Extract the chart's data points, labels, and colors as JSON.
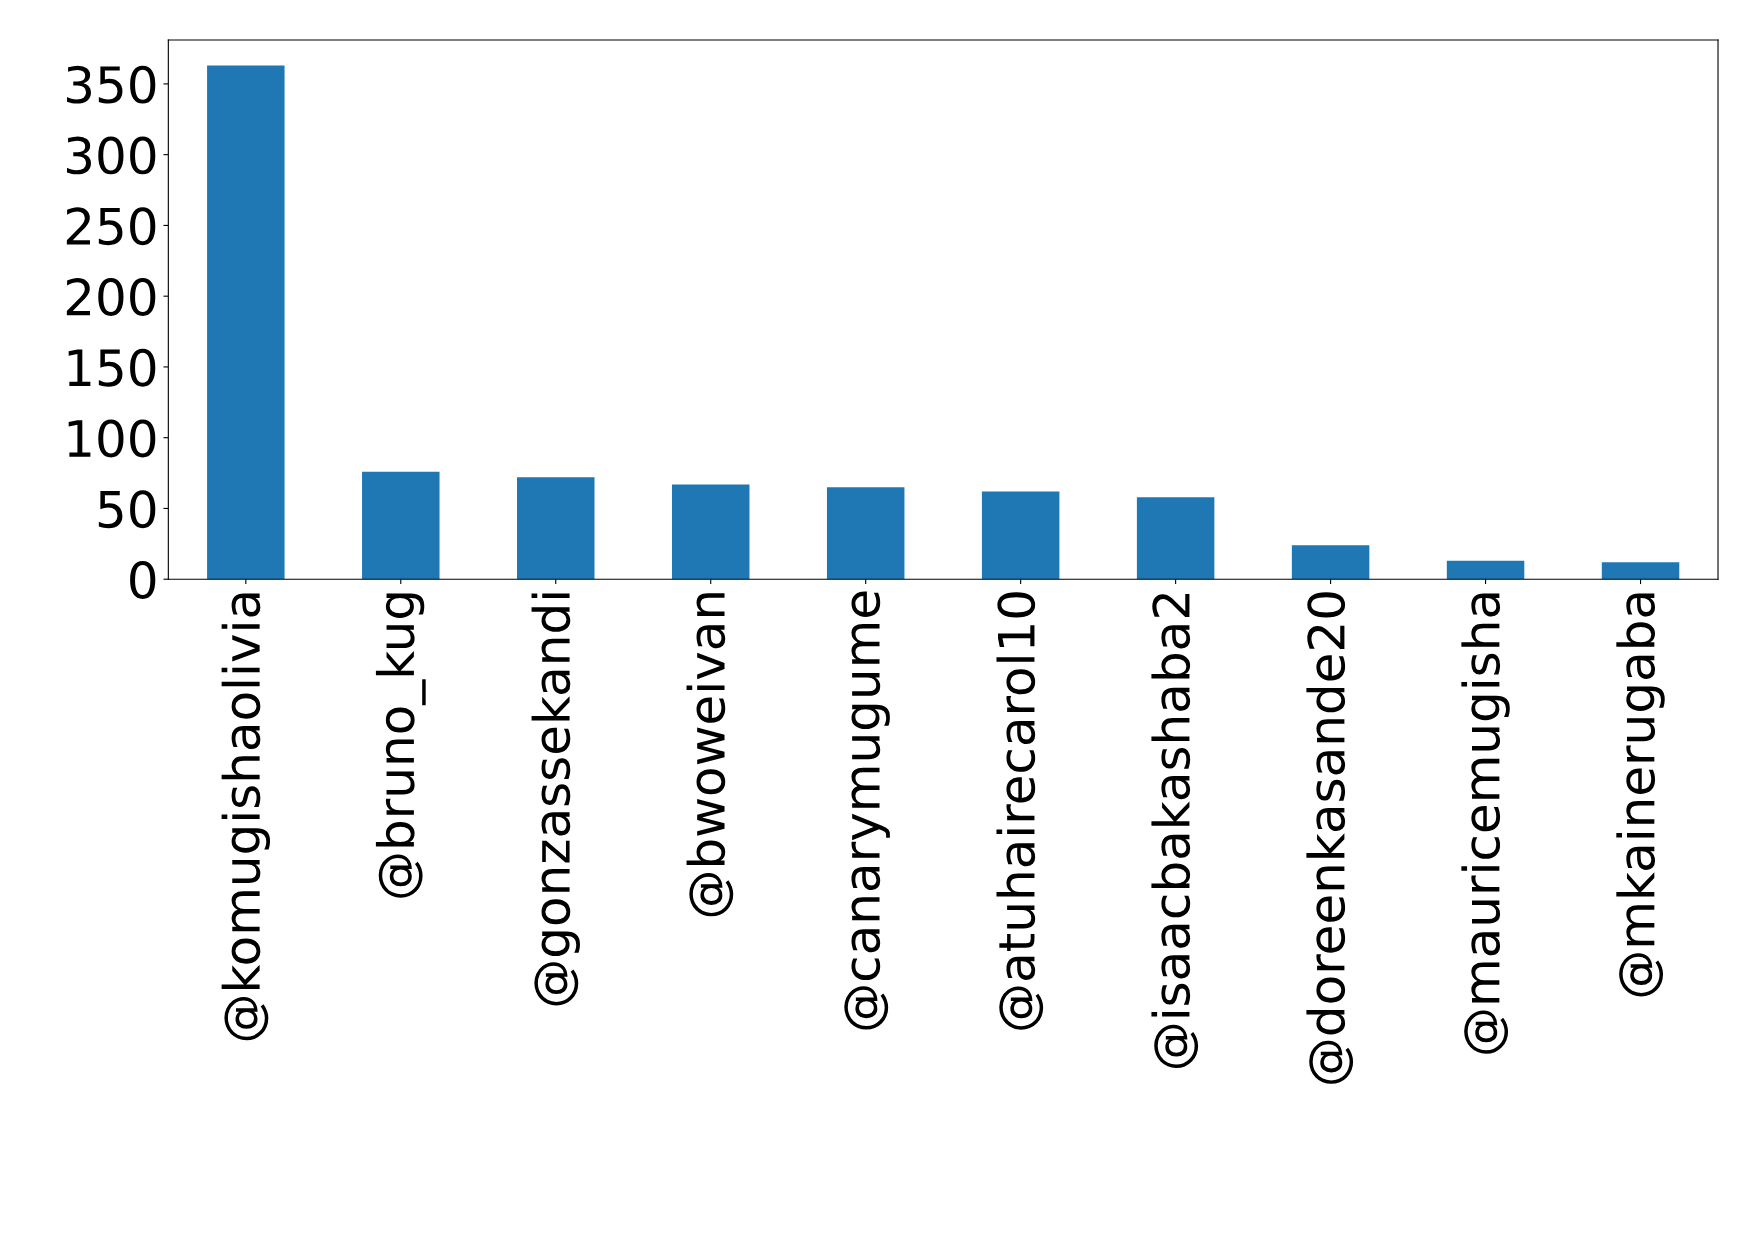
{
  "chart_data": {
    "type": "bar",
    "categories": [
      "@komugishaolivia",
      "@bruno_kug",
      "@gonzassekandi",
      "@bwoweivan",
      "@canarymugume",
      "@atuhairecarol10",
      "@isaacbakashaba2",
      "@doreenkasande20",
      "@mauricemugisha",
      "@mkainerugaba"
    ],
    "values": [
      363,
      76,
      72,
      67,
      65,
      62,
      58,
      24,
      13,
      12
    ],
    "color": "#1f77b4",
    "ylim": [
      0,
      381
    ],
    "yticks": [
      0,
      50,
      100,
      150,
      200,
      250,
      300,
      350
    ],
    "grid": false,
    "legend": false
  }
}
